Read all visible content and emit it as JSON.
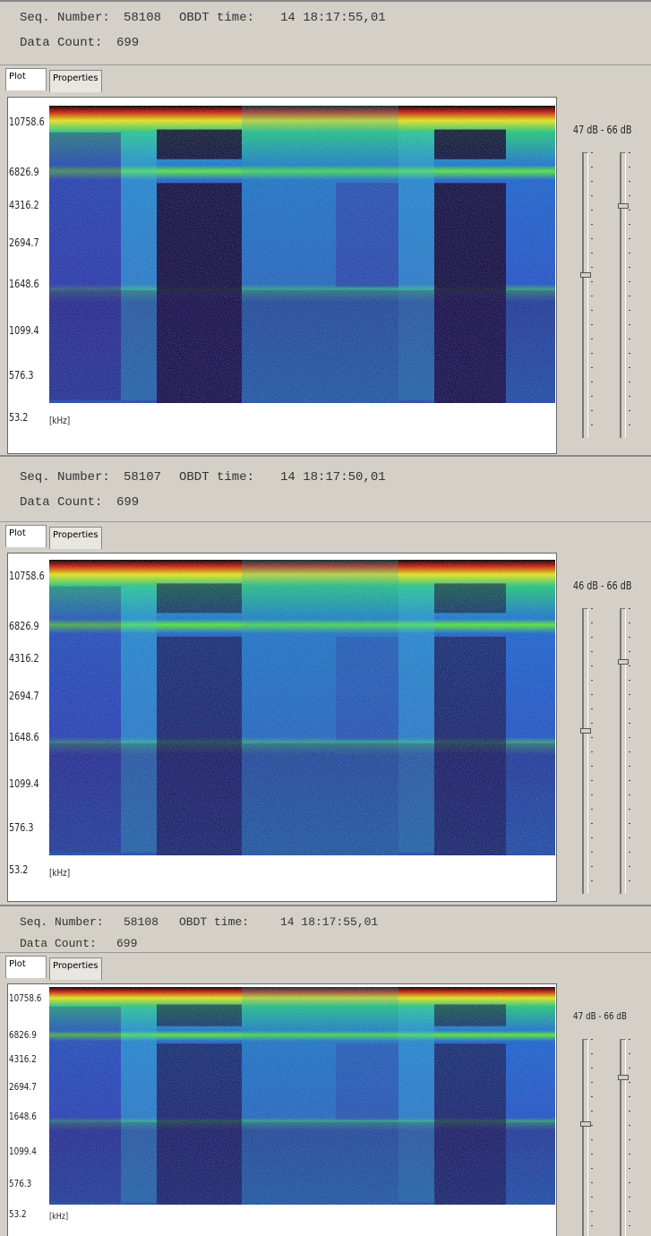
{
  "panels": [
    {
      "seq_label": "Seq. Number:",
      "seq": "58108",
      "time_label": "OBDT time:",
      "time": "14 18:17:55,01",
      "count_label": "Data Count:",
      "count": "699",
      "tabs": [
        "Plot",
        "Properties"
      ],
      "y_labels": [
        "10758.6",
        "6826.9",
        "4316.2",
        "2694.7",
        "1648.6",
        "1099.4",
        "576.3",
        "53.2"
      ],
      "unit": "[kHz]",
      "db_range": "47 dB - 66 dB"
    },
    {
      "seq_label": "Seq. Number:",
      "seq": "58107",
      "time_label": "OBDT time:",
      "time": "14 18:17:50,01",
      "count_label": "Data Count:",
      "count": "699",
      "tabs": [
        "Plot",
        "Properties"
      ],
      "y_labels": [
        "10758.6",
        "6826.9",
        "4316.2",
        "2694.7",
        "1648.6",
        "1099.4",
        "576.3",
        "53.2"
      ],
      "unit": "[kHz]",
      "db_range": "46 dB - 66 dB"
    },
    {
      "seq_label": "Seq. Number:",
      "seq": "58108",
      "time_label": "OBDT time:",
      "time": "14 18:17:55,01",
      "count_label": "Data Count:",
      "count": "699",
      "tabs": [
        "Plot",
        "Properties"
      ],
      "y_labels": [
        "10758.6",
        "6826.9",
        "4316.2",
        "2694.7",
        "1648.6",
        "1099.4",
        "576.3",
        "53.2"
      ],
      "unit": "[kHz]",
      "db_range": "47 dB - 66 dB"
    }
  ]
}
